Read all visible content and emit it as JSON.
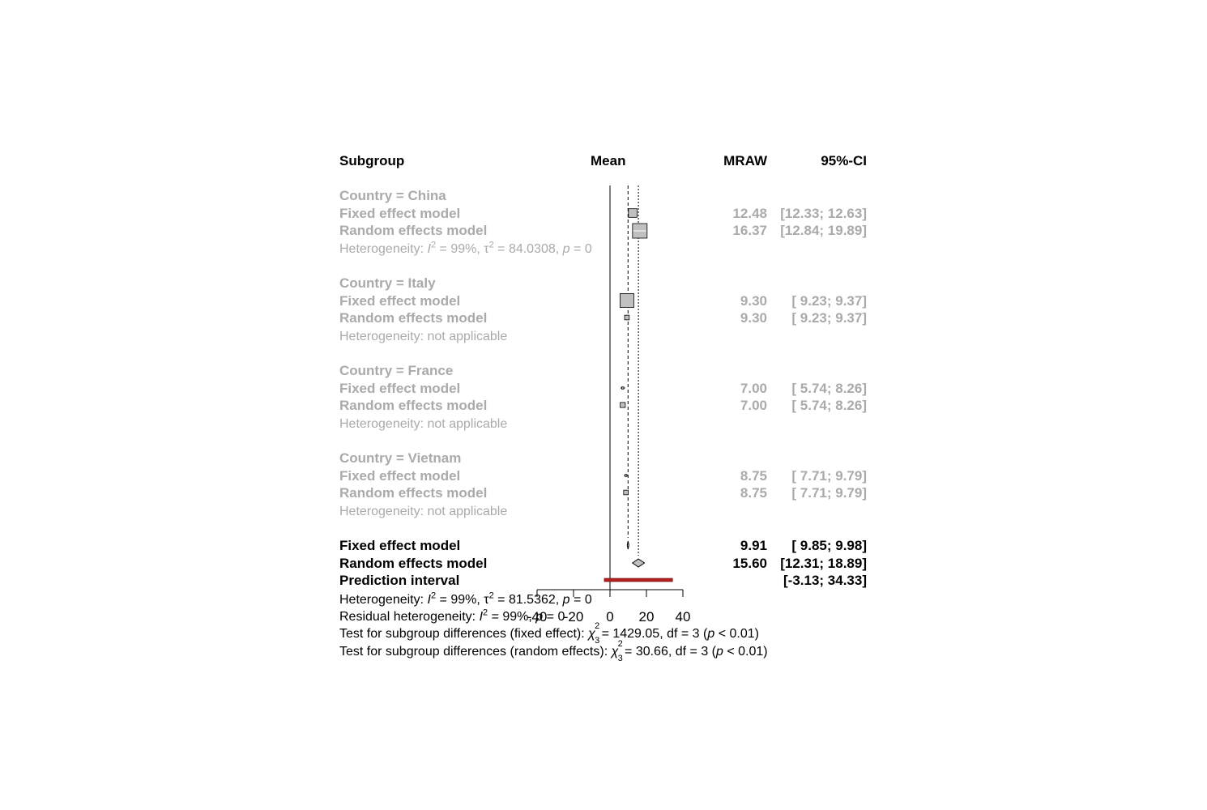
{
  "headers": {
    "subgroup": "Subgroup",
    "mean": "Mean",
    "mraw": "MRAW",
    "ci": "95%-CI"
  },
  "subgroups": [
    {
      "title": "Country = China",
      "fixed_label": "Fixed effect model",
      "fixed_mraw": "12.48",
      "fixed_ci": "[12.33; 12.63]",
      "random_label": "Random effects model",
      "random_mraw": "16.37",
      "random_ci": "[12.84; 19.89]",
      "het_prefix": "Heterogeneity: ",
      "het_i2": "I",
      "het_i2_exp": "2",
      "het_i2_val": " = 99%, ",
      "het_tau": "τ",
      "het_tau_exp": "2",
      "het_tau_val": " = 84.0308, ",
      "het_p": "p",
      "het_p_val": " = 0"
    },
    {
      "title": "Country = Italy",
      "fixed_label": "Fixed effect model",
      "fixed_mraw": "9.30",
      "fixed_ci": "[ 9.23;  9.37]",
      "random_label": "Random effects model",
      "random_mraw": "9.30",
      "random_ci": "[ 9.23;  9.37]",
      "het_text": "Heterogeneity: not applicable"
    },
    {
      "title": "Country = France",
      "fixed_label": "Fixed effect model",
      "fixed_mraw": "7.00",
      "fixed_ci": "[ 5.74;  8.26]",
      "random_label": "Random effects model",
      "random_mraw": "7.00",
      "random_ci": "[ 5.74;  8.26]",
      "het_text": "Heterogeneity: not applicable"
    },
    {
      "title": "Country = Vietnam",
      "fixed_label": "Fixed effect model",
      "fixed_mraw": "8.75",
      "fixed_ci": "[ 7.71;  9.79]",
      "random_label": "Random effects model",
      "random_mraw": "8.75",
      "random_ci": "[ 7.71;  9.79]",
      "het_text": "Heterogeneity: not applicable"
    }
  ],
  "overall": {
    "fixed_label": "Fixed effect model",
    "fixed_mraw": "9.91",
    "fixed_ci": "[ 9.85;  9.98]",
    "random_label": "Random effects model",
    "random_mraw": "15.60",
    "random_ci": "[12.31; 18.89]",
    "pi_label": "Prediction interval",
    "pi_ci": "[-3.13; 34.33]"
  },
  "footnotes": {
    "het_prefix": "Heterogeneity: ",
    "het_i": "I",
    "het_i_exp": "2",
    "het_i_val": " = 99%, ",
    "het_tau": "τ",
    "het_tau_exp": "2",
    "het_tau_val": " = 81.5362, ",
    "het_p": "p",
    "het_p_val": " = 0",
    "resid_prefix": "Residual heterogeneity: ",
    "resid_i": "I",
    "resid_i_exp": "2",
    "resid_i_val": " = 99%, ",
    "resid_p": "p",
    "resid_p_val": " = 0",
    "fixed_prefix": "Test for subgroup differences (fixed effect): ",
    "fixed_chi": "χ",
    "fixed_chi_exp": "2",
    "fixed_chi_sub": "3",
    "fixed_val": " = 1429.05, df = 3 (",
    "fixed_p": "p",
    "fixed_p_val": " < 0.01)",
    "random_prefix": "Test for subgroup differences (random effects): ",
    "random_chi": "χ",
    "random_chi_exp": "2",
    "random_chi_sub": "3",
    "random_val": " = 30.66, df = 3 (",
    "random_p": "p",
    "random_p_val": " < 0.01)"
  },
  "colors": {
    "subgroup_text": "#aaaaaa",
    "overall_text": "#000000",
    "box_fill": "#c0c0c0",
    "diamond_fill": "#c0c0c0",
    "prediction_bar": "#b22222"
  },
  "chart_data": {
    "type": "forest",
    "x_ticks": [
      -40,
      -20,
      0,
      20,
      40
    ],
    "x_tick_labels": [
      "-40",
      "-20",
      "0",
      "20",
      "40"
    ],
    "xlim": [
      -40,
      40
    ],
    "null_line": 0,
    "fixed_line": 9.91,
    "random_line": 15.6,
    "rows": [
      {
        "row": "china-fixed",
        "kind": "box",
        "est": 12.48,
        "lo": 12.33,
        "hi": 12.63,
        "weight": 0.35
      },
      {
        "row": "china-random",
        "kind": "box",
        "est": 16.37,
        "lo": 12.84,
        "hi": 19.89,
        "weight": 1.0
      },
      {
        "row": "italy-fixed",
        "kind": "box",
        "est": 9.3,
        "lo": 9.23,
        "hi": 9.37,
        "weight": 0.9
      },
      {
        "row": "italy-random",
        "kind": "box",
        "est": 9.3,
        "lo": 9.23,
        "hi": 9.37,
        "weight": 0.1
      },
      {
        "row": "france-fixed",
        "kind": "box",
        "est": 7.0,
        "lo": 5.74,
        "hi": 8.26,
        "weight": 0.02
      },
      {
        "row": "france-random",
        "kind": "box",
        "est": 7.0,
        "lo": 5.74,
        "hi": 8.26,
        "weight": 0.12
      },
      {
        "row": "vietnam-fixed",
        "kind": "box",
        "est": 8.75,
        "lo": 7.71,
        "hi": 9.79,
        "weight": 0.02
      },
      {
        "row": "vietnam-random",
        "kind": "box",
        "est": 8.75,
        "lo": 7.71,
        "hi": 9.79,
        "weight": 0.1
      },
      {
        "row": "overall-fixed",
        "kind": "diamond",
        "est": 9.91,
        "lo": 9.85,
        "hi": 9.98
      },
      {
        "row": "overall-random",
        "kind": "diamond",
        "est": 15.6,
        "lo": 12.31,
        "hi": 18.89
      },
      {
        "row": "prediction",
        "kind": "bar",
        "lo": -3.13,
        "hi": 34.33
      }
    ]
  }
}
